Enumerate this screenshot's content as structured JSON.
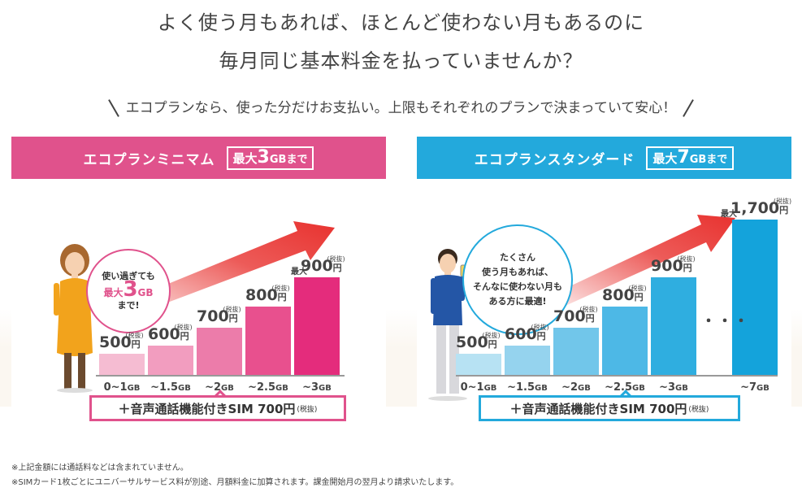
{
  "headline": {
    "line1": "よく使う月もあれば、ほとんど使わない月もあるのに",
    "line2": "毎月同じ基本料金を払っていませんか？"
  },
  "subline": "エコプランなら、使った分だけお支払い。上限もそれぞれのプランで決まっていて安心！",
  "yen_symbol": "円",
  "tax_label": "(税抜)",
  "max_label": "最大",
  "minimum": {
    "name": "エコプランミニマム",
    "badge_prefix": "最大",
    "badge_num": "3",
    "badge_unit": "GBまで",
    "bubble": {
      "line1": "使い過ぎても",
      "max": "最大",
      "num": "3",
      "unit": "GB",
      "line3": "まで!"
    },
    "sim": {
      "text": "＋音声通話機能付きSIM 700円",
      "tax": "(税抜)"
    },
    "bars": [
      {
        "price": "500",
        "label": "0~1",
        "unit": "GB",
        "max": false
      },
      {
        "price": "600",
        "label": "~1.5",
        "unit": "GB",
        "max": false
      },
      {
        "price": "700",
        "label": "~2",
        "unit": "GB",
        "max": false
      },
      {
        "price": "800",
        "label": "~2.5",
        "unit": "GB",
        "max": false
      },
      {
        "price": "900",
        "label": "~3",
        "unit": "GB",
        "max": true
      }
    ]
  },
  "standard": {
    "name": "エコプランスタンダード",
    "badge_prefix": "最大",
    "badge_num": "7",
    "badge_unit": "GBまで",
    "bubble": {
      "line1": "たくさん",
      "line2": "使う月もあれば、",
      "line3": "そんなに使わない月も",
      "line4": "ある方に最適!"
    },
    "sim": {
      "text": "＋音声通話機能付きSIM 700円",
      "tax": "(税抜)"
    },
    "ellipsis": "・・・",
    "bars": [
      {
        "price": "500",
        "label": "0~1",
        "unit": "GB",
        "max": false
      },
      {
        "price": "600",
        "label": "~1.5",
        "unit": "GB",
        "max": false
      },
      {
        "price": "700",
        "label": "~2",
        "unit": "GB",
        "max": false
      },
      {
        "price": "800",
        "label": "~2.5",
        "unit": "GB",
        "max": false
      },
      {
        "price": "900",
        "label": "~3",
        "unit": "GB",
        "max": false
      },
      {
        "price": "1,700",
        "label": "~7",
        "unit": "GB",
        "max": true
      }
    ]
  },
  "footnotes": [
    "※上記金額には通話料などは含まれていません。",
    "※SIMカード1枚ごとにユニバーサルサービス料が別途、月額料金に加算されます。課金開始月の翌月より請求いたします。"
  ],
  "colors": {
    "pink": "#e0528c",
    "blue": "#23a9dc",
    "arrow": "#e8322f"
  }
}
